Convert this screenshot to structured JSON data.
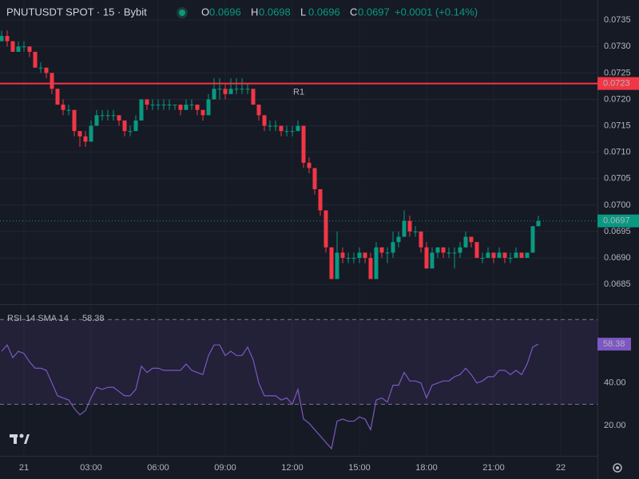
{
  "chart_data": {
    "type": "candlestick",
    "title": "PNUTUSDT SPOT · 15 · Bybit",
    "ohlc_labels": [
      "O",
      "H",
      "L",
      "C"
    ],
    "change": "+0.0001 (+0.14%)",
    "up_color": "#089981",
    "down_color": "#f23645",
    "open": [
      0.0731,
      0.0732,
      0.0731,
      0.0729,
      0.073,
      0.073,
      0.0729,
      0.0726,
      0.0726,
      0.0725,
      0.0722,
      0.0719,
      0.0718,
      0.0718,
      0.0714,
      0.0713,
      0.0712,
      0.0715,
      0.0717,
      0.0717,
      0.0717,
      0.0717,
      0.0716,
      0.0714,
      0.0714,
      0.0716,
      0.072,
      0.0719,
      0.0719,
      0.0719,
      0.0719,
      0.0719,
      0.0719,
      0.0718,
      0.0719,
      0.0719,
      0.0718,
      0.0717,
      0.072,
      0.0722,
      0.0722,
      0.0721,
      0.0722,
      0.0722,
      0.0722,
      0.0722,
      0.0719,
      0.0717,
      0.0715,
      0.0715,
      0.0715,
      0.0714,
      0.0714,
      0.0714,
      0.0715,
      0.0708,
      0.0707,
      0.0703,
      0.0699,
      0.0692,
      0.0686,
      0.0691,
      0.069,
      0.069,
      0.069,
      0.0691,
      0.069,
      0.0686,
      0.0692,
      0.0691,
      0.0691,
      0.0693,
      0.0694,
      0.0697,
      0.0695,
      0.0695,
      0.0692,
      0.0688,
      0.0691,
      0.0692,
      0.0691,
      0.0691,
      0.0691,
      0.0692,
      0.0694,
      0.0693,
      0.069,
      0.069,
      0.0691,
      0.069,
      0.0691,
      0.069,
      0.069,
      0.0691,
      0.069,
      0.0691,
      0.0696
    ],
    "high": [
      0.0733,
      0.0733,
      0.0731,
      0.0731,
      0.0731,
      0.073,
      0.0729,
      0.0727,
      0.0726,
      0.0725,
      0.0722,
      0.072,
      0.0719,
      0.0718,
      0.0714,
      0.0714,
      0.0716,
      0.0718,
      0.0718,
      0.0718,
      0.0718,
      0.0717,
      0.0716,
      0.0715,
      0.0717,
      0.072,
      0.072,
      0.072,
      0.072,
      0.072,
      0.072,
      0.0719,
      0.0719,
      0.072,
      0.072,
      0.0719,
      0.0718,
      0.0721,
      0.0724,
      0.0724,
      0.0723,
      0.0724,
      0.0724,
      0.0724,
      0.0723,
      0.0722,
      0.0719,
      0.0717,
      0.0716,
      0.0716,
      0.0715,
      0.0715,
      0.0715,
      0.0716,
      0.0715,
      0.0709,
      0.0707,
      0.0703,
      0.0699,
      0.0692,
      0.0695,
      0.0692,
      0.0691,
      0.0691,
      0.0692,
      0.0691,
      0.0691,
      0.0693,
      0.0692,
      0.0692,
      0.0695,
      0.0695,
      0.0699,
      0.0698,
      0.0696,
      0.0695,
      0.0693,
      0.0692,
      0.0692,
      0.0692,
      0.0692,
      0.0692,
      0.0693,
      0.0695,
      0.0694,
      0.0693,
      0.0691,
      0.0692,
      0.0691,
      0.0692,
      0.0691,
      0.0691,
      0.0692,
      0.0691,
      0.0691,
      0.0696,
      0.0698
    ],
    "low": [
      0.0731,
      0.073,
      0.0729,
      0.0729,
      0.0729,
      0.0728,
      0.0726,
      0.0725,
      0.0724,
      0.0721,
      0.0719,
      0.0717,
      0.0717,
      0.0713,
      0.0711,
      0.0711,
      0.0712,
      0.0715,
      0.0716,
      0.0716,
      0.0716,
      0.0715,
      0.0713,
      0.0713,
      0.0714,
      0.0716,
      0.0718,
      0.0718,
      0.0718,
      0.0718,
      0.0718,
      0.0718,
      0.0717,
      0.0718,
      0.0718,
      0.0717,
      0.0716,
      0.0717,
      0.072,
      0.072,
      0.072,
      0.0721,
      0.0721,
      0.0721,
      0.0721,
      0.0719,
      0.0716,
      0.0714,
      0.0714,
      0.0714,
      0.0713,
      0.0713,
      0.0713,
      0.0714,
      0.0707,
      0.0706,
      0.0702,
      0.0698,
      0.0691,
      0.0686,
      0.0686,
      0.0689,
      0.0689,
      0.0689,
      0.0689,
      0.0689,
      0.0686,
      0.0686,
      0.069,
      0.0689,
      0.069,
      0.0692,
      0.0694,
      0.0694,
      0.0694,
      0.0691,
      0.0688,
      0.0688,
      0.069,
      0.069,
      0.069,
      0.0688,
      0.069,
      0.0692,
      0.0692,
      0.069,
      0.0689,
      0.069,
      0.0689,
      0.069,
      0.0689,
      0.0689,
      0.069,
      0.069,
      0.069,
      0.0691,
      0.0696
    ],
    "close": [
      0.0732,
      0.0731,
      0.0729,
      0.073,
      0.073,
      0.0729,
      0.0726,
      0.0726,
      0.0725,
      0.0722,
      0.0719,
      0.0718,
      0.0718,
      0.0714,
      0.0713,
      0.0712,
      0.0715,
      0.0717,
      0.0717,
      0.0717,
      0.0717,
      0.0716,
      0.0714,
      0.0714,
      0.0716,
      0.072,
      0.0719,
      0.0719,
      0.0719,
      0.0719,
      0.0719,
      0.0719,
      0.0718,
      0.0719,
      0.0719,
      0.0718,
      0.0717,
      0.072,
      0.0722,
      0.0722,
      0.0721,
      0.0722,
      0.0722,
      0.0722,
      0.0722,
      0.0719,
      0.0717,
      0.0715,
      0.0715,
      0.0715,
      0.0714,
      0.0714,
      0.0714,
      0.0715,
      0.0708,
      0.0707,
      0.0703,
      0.0699,
      0.0692,
      0.0686,
      0.0691,
      0.069,
      0.069,
      0.069,
      0.0691,
      0.069,
      0.0686,
      0.0692,
      0.0691,
      0.0691,
      0.0693,
      0.0694,
      0.0697,
      0.0695,
      0.0695,
      0.0692,
      0.0688,
      0.0691,
      0.0692,
      0.0691,
      0.0691,
      0.0691,
      0.0692,
      0.0694,
      0.0693,
      0.069,
      0.069,
      0.0691,
      0.069,
      0.0691,
      0.069,
      0.069,
      0.0691,
      0.069,
      0.0691,
      0.0696,
      0.0697
    ],
    "ylim": [
      0.06814,
      0.07388
    ],
    "yticks": [
      0.0735,
      {
        "value": 0.073,
        "label": "0.0730"
      },
      0.0725,
      {
        "value": 0.072,
        "label": "0.0720"
      },
      0.0715,
      {
        "value": 0.071,
        "label": "0.0710"
      },
      0.0705,
      {
        "value": 0.07,
        "label": "0.0700"
      },
      0.0695,
      {
        "value": 0.069,
        "label": "0.0690"
      },
      0.0685
    ],
    "levels": [
      {
        "name": "R1",
        "value": 0.0723,
        "color": "#f23645"
      }
    ],
    "time_labels": [
      "21",
      "03:00",
      "06:00",
      "09:00",
      "12:00",
      "15:00",
      "18:00",
      "21:00",
      "22"
    ],
    "rsi": {
      "name": "RSI",
      "params": "14 SMA 14",
      "color": "#7e57c2",
      "values": [
        55,
        58,
        52,
        55,
        54,
        50,
        47,
        47,
        46,
        40,
        34,
        33,
        32,
        28,
        25,
        27,
        33,
        38,
        37,
        38,
        38,
        36,
        34,
        34,
        37,
        48,
        45,
        47,
        47,
        46,
        46,
        46,
        46,
        49,
        46,
        45,
        44,
        53,
        58,
        58,
        53,
        55,
        53,
        53,
        57,
        51,
        40,
        34,
        34,
        34,
        32,
        33,
        30,
        37,
        23,
        21,
        18,
        15,
        12,
        9,
        22,
        23,
        22,
        22,
        24,
        23,
        18,
        32,
        33,
        31,
        39,
        39,
        45,
        41,
        41,
        40,
        33,
        39,
        40,
        41,
        41,
        43,
        44,
        47,
        44,
        40,
        41,
        43,
        43,
        46,
        46,
        44,
        46,
        44,
        49,
        57,
        58.38
      ],
      "ylim": [
        6,
        76.5
      ],
      "yticks": [
        {
          "value": 40,
          "label": "40.00"
        },
        {
          "value": 20,
          "label": "20.00"
        }
      ],
      "bands": [
        30,
        70
      ]
    }
  }
}
